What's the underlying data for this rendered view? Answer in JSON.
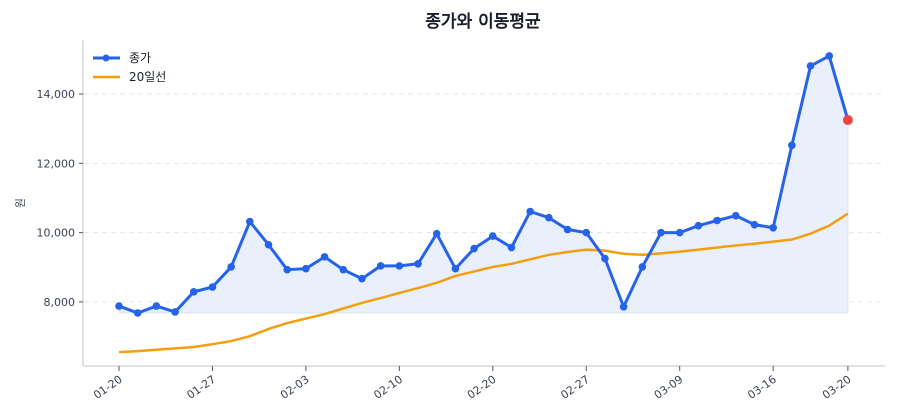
{
  "chart_data": {
    "type": "line",
    "title": "종가와 이동평균",
    "xlabel": "",
    "ylabel": "원",
    "ylim": [
      6150,
      15560
    ],
    "grid": "horizontal dashed",
    "legend_position": "top-left",
    "x_tick_labels": [
      {
        "index": 0,
        "label": "01-20"
      },
      {
        "index": 5,
        "label": "01-27"
      },
      {
        "index": 10,
        "label": "02-03"
      },
      {
        "index": 15,
        "label": "02-10"
      },
      {
        "index": 20,
        "label": "02-20"
      },
      {
        "index": 25,
        "label": "02-27"
      },
      {
        "index": 30,
        "label": "03-09"
      },
      {
        "index": 35,
        "label": "03-16"
      },
      {
        "index": 39,
        "label": "03-20"
      }
    ],
    "y_ticks": [
      8000,
      10000,
      12000,
      14000
    ],
    "y_tick_labels": [
      "8,000",
      "10,000",
      "12,000",
      "14,000"
    ],
    "series": [
      {
        "name": "종가",
        "color": "#2563eb",
        "marker": "circle",
        "fill": "#eaf0fb",
        "last_point_color": "#ef4444",
        "values": [
          7880,
          7680,
          7880,
          7710,
          8290,
          8430,
          9010,
          10320,
          9650,
          8930,
          8960,
          9300,
          8930,
          8670,
          9040,
          9040,
          9100,
          9970,
          8960,
          9540,
          9900,
          9570,
          10610,
          10430,
          10090,
          10000,
          9250,
          7860,
          9010,
          10000,
          10000,
          10200,
          10350,
          10490,
          10230,
          10140,
          12520,
          14810,
          15100,
          13250
        ]
      },
      {
        "name": "20일선",
        "color": "#f59e0b",
        "values": [
          6550,
          6580,
          6620,
          6660,
          6700,
          6780,
          6870,
          7010,
          7220,
          7390,
          7520,
          7650,
          7810,
          7970,
          8110,
          8260,
          8400,
          8550,
          8750,
          8880,
          9010,
          9100,
          9230,
          9360,
          9440,
          9510,
          9480,
          9390,
          9360,
          9400,
          9450,
          9510,
          9570,
          9630,
          9680,
          9740,
          9800,
          9970,
          10200,
          10550
        ]
      }
    ]
  }
}
